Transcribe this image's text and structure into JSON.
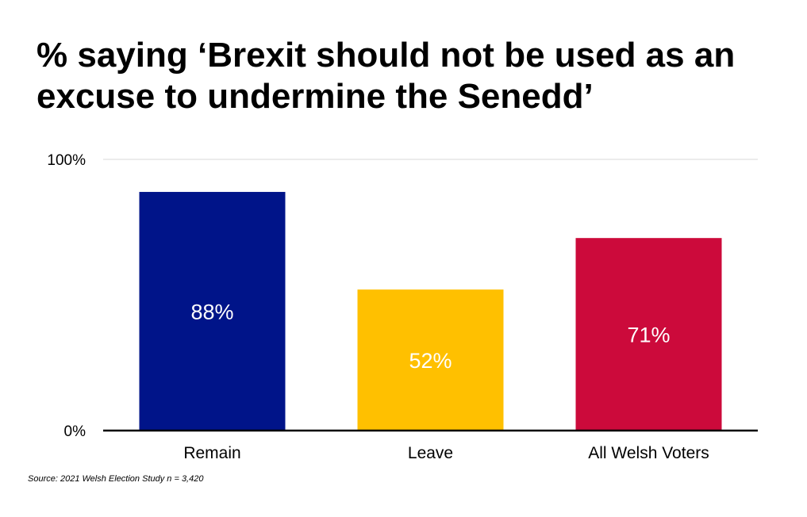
{
  "title": "% saying ‘Brexit should not be used as an excuse to undermine the Senedd’",
  "source": "Source: 2021 Welsh Election Study n = 3,420",
  "chart_data": {
    "type": "bar",
    "categories": [
      "Remain",
      "Leave",
      "All Welsh Voters"
    ],
    "values": [
      88,
      52,
      71
    ],
    "value_labels": [
      "88%",
      "52%",
      "71%"
    ],
    "colors": [
      "#001489",
      "#FFC000",
      "#CC0A3B"
    ],
    "title": "% saying ‘Brexit should not be used as an excuse to undermine the Senedd’",
    "xlabel": "",
    "ylabel": "",
    "ylim": [
      0,
      100
    ],
    "yticks": [
      0,
      100
    ],
    "ytick_labels": [
      "0%",
      "100%"
    ],
    "grid": true,
    "legend": "none",
    "label_color": "#FFFFFF"
  }
}
